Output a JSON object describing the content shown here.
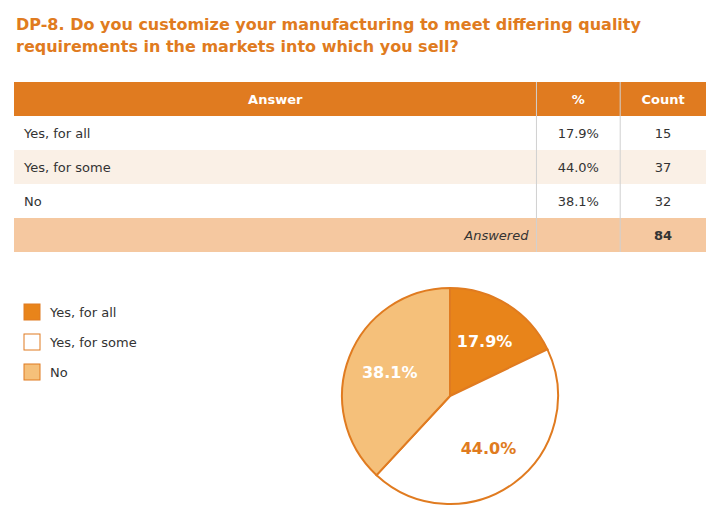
{
  "chart_data": {
    "type": "pie",
    "title": "DP-8. Do you customize your manufacturing to meet differing quality\nrequirements in the markets into which you sell?",
    "categories": [
      "Yes, for all",
      "Yes, for some",
      "No"
    ],
    "values": [
      17.9,
      44.0,
      38.1
    ],
    "value_labels": [
      "17.9%",
      "44.0%",
      "38.1%"
    ],
    "data_labels": true,
    "colors": [
      "#E8841A",
      "#FFFFFF",
      "#F5C07A"
    ],
    "color": "#E07B20",
    "legend": "left",
    "table_header": [
      "Answer",
      "%",
      "Count"
    ],
    "counts": [
      15,
      37,
      32
    ],
    "footer": {
      "label": "Answered",
      "value": 84
    }
  }
}
